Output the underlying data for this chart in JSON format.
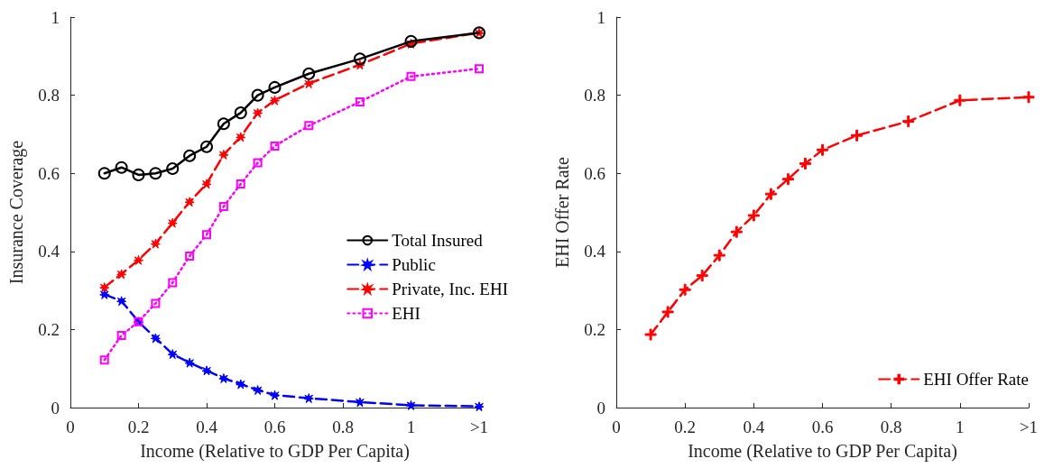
{
  "chart_data": [
    {
      "type": "line",
      "xlabel": "Income (Relative to GDP Per Capita)",
      "ylabel": "Insurance Coverage",
      "x": [
        0.1,
        0.15,
        0.2,
        0.25,
        0.3,
        0.35,
        0.4,
        0.45,
        0.5,
        0.55,
        0.6,
        0.7,
        0.85,
        1,
        1.2
      ],
      "xlim": [
        0,
        1.2
      ],
      "xticks": [
        0,
        0.2,
        0.4,
        0.6,
        0.8,
        1,
        {
          "value": 1.2,
          "label": ">1"
        }
      ],
      "ylim": [
        0,
        1
      ],
      "yticks": [
        0,
        0.2,
        0.4,
        0.6,
        0.8,
        1
      ],
      "grid": false,
      "legend": "right",
      "series": [
        {
          "name": "Total Insured",
          "color": "#000000",
          "marker": "circle",
          "line_style": "solid",
          "values": [
            0.6,
            0.615,
            0.596,
            0.6,
            0.612,
            0.645,
            0.668,
            0.727,
            0.755,
            0.8,
            0.82,
            0.855,
            0.893,
            0.938,
            0.96
          ]
        },
        {
          "name": "Public",
          "color": "#0000ff",
          "marker": "star",
          "line_style": "dashed",
          "values": [
            0.29,
            0.273,
            0.22,
            0.178,
            0.137,
            0.115,
            0.095,
            0.075,
            0.06,
            0.045,
            0.032,
            0.024,
            0.014,
            0.006,
            0.003
          ]
        },
        {
          "name": "Private, Inc. EHI",
          "color": "#ff0000",
          "marker": "star",
          "line_style": "dashed",
          "values": [
            0.308,
            0.342,
            0.378,
            0.42,
            0.473,
            0.527,
            0.573,
            0.648,
            0.693,
            0.755,
            0.787,
            0.83,
            0.878,
            0.932,
            0.96
          ]
        },
        {
          "name": "EHI",
          "color": "#ff00ff",
          "marker": "square",
          "line_style": "dotted",
          "values": [
            0.122,
            0.185,
            0.22,
            0.267,
            0.32,
            0.388,
            0.443,
            0.515,
            0.573,
            0.627,
            0.67,
            0.722,
            0.783,
            0.848,
            0.868
          ]
        }
      ]
    },
    {
      "type": "line",
      "xlabel": "Income (Relative to GDP Per Capita)",
      "ylabel": "EHI Offer Rate",
      "x": [
        0.1,
        0.15,
        0.2,
        0.25,
        0.3,
        0.35,
        0.4,
        0.45,
        0.5,
        0.55,
        0.6,
        0.7,
        0.85,
        1,
        1.2
      ],
      "xlim": [
        0,
        1.2
      ],
      "xticks": [
        0,
        0.2,
        0.4,
        0.6,
        0.8,
        1,
        {
          "value": 1.2,
          "label": ">1"
        }
      ],
      "ylim": [
        0,
        1
      ],
      "yticks": [
        0,
        0.2,
        0.4,
        0.6,
        0.8,
        1
      ],
      "grid": false,
      "legend": "bottom right",
      "series": [
        {
          "name": "EHI Offer Rate",
          "color": "#ff0000",
          "marker": "cross",
          "line_style": "dashed",
          "values": [
            0.187,
            0.245,
            0.302,
            0.338,
            0.39,
            0.45,
            0.492,
            0.547,
            0.585,
            0.625,
            0.66,
            0.697,
            0.733,
            0.787,
            0.795
          ]
        }
      ]
    }
  ]
}
